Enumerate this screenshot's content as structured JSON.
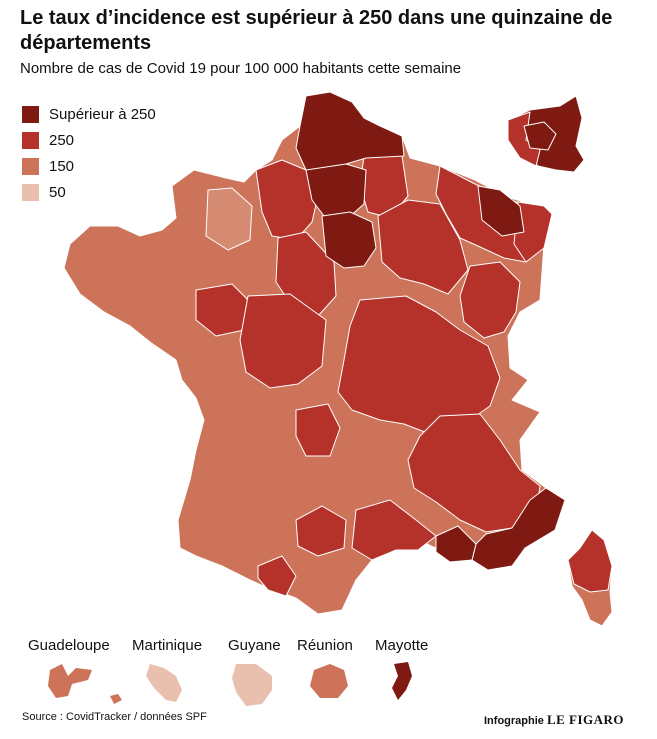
{
  "title": "Le taux d’incidence est supérieur à 250 dans une quinzaine de départements",
  "subtitle": "Nombre de cas de Covid 19 pour 100 000 habitants cette semaine",
  "legend": [
    {
      "label": "Supérieur à 250",
      "color": "#7e1a12"
    },
    {
      "label": "250",
      "color": "#b4322a"
    },
    {
      "label": "150",
      "color": "#cd7359"
    },
    {
      "label": "50",
      "color": "#e9bfae"
    }
  ],
  "overseas": [
    {
      "name": "Guadeloupe",
      "color": "#cd7359"
    },
    {
      "name": "Martinique",
      "color": "#e9bfae"
    },
    {
      "name": "Guyane",
      "color": "#e9bfae"
    },
    {
      "name": "Réunion",
      "color": "#cd7359"
    },
    {
      "name": "Mayotte",
      "color": "#7e1a12"
    }
  ],
  "source": "Source : CovidTracker / données SPF",
  "credit": {
    "prefix": "Infographie",
    "brand": "LE FIGARO"
  }
}
